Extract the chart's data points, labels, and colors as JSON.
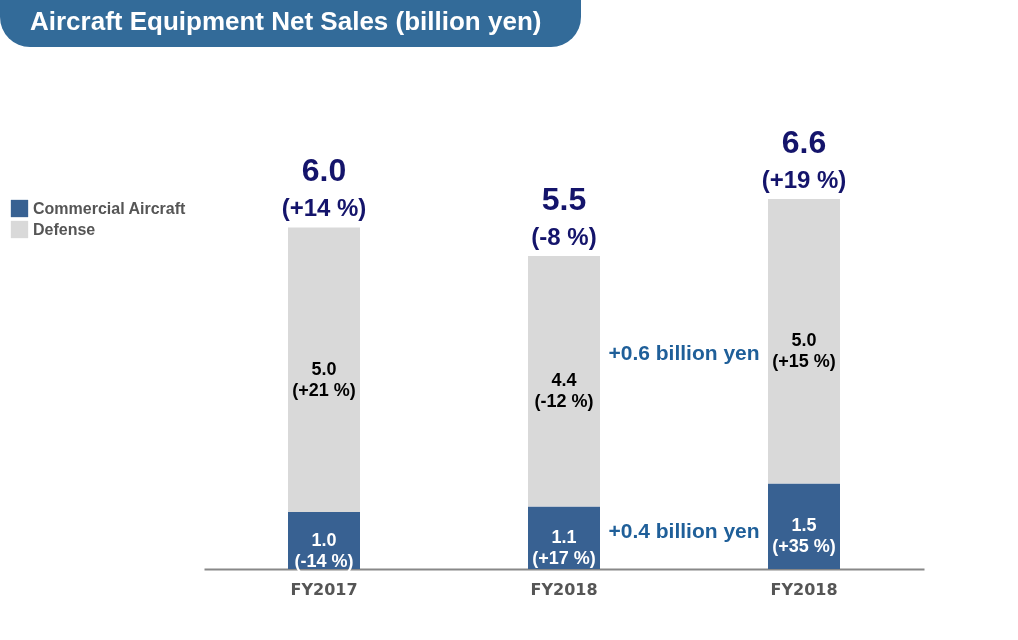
{
  "chart_data": {
    "type": "bar",
    "title": "Aircraft Equipment Net Sales (billion yen)",
    "stacked": true,
    "legend": "left",
    "categories": [
      "FY2017",
      "FY2018",
      "FY2018"
    ],
    "series": [
      {
        "name": "Commercial Aircraft",
        "color": "#386192",
        "values": [
          1.0,
          1.1,
          1.5
        ],
        "value_labels": [
          "1.0 (-14 %)",
          "1.1 (+17 %)",
          "1.5 (+35 %)"
        ]
      },
      {
        "name": "Defense",
        "color": "#d9d9d9",
        "values": [
          5.0,
          4.4,
          5.0
        ],
        "value_labels": [
          "5.0 (+21 %)",
          "4.4 (-12 %)",
          "5.0 (+15 %)"
        ]
      }
    ],
    "totals": [
      "6.0 (+14 %)",
      "5.5 (-8 %)",
      "6.6 (+19 %)"
    ],
    "annotations": [
      "+0.6 billion yen",
      "+0.4 billion yen"
    ]
  }
}
